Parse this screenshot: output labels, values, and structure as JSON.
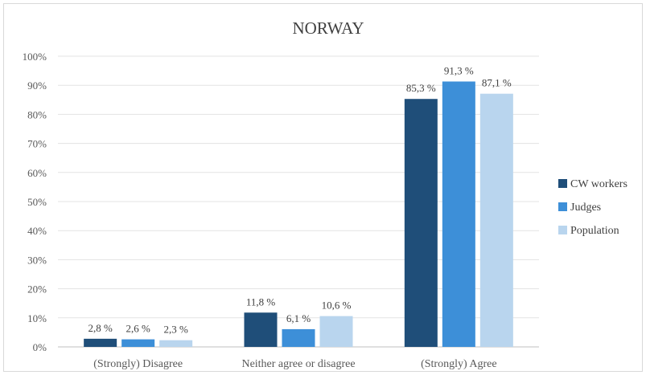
{
  "chart_data": {
    "type": "bar",
    "title": "NORWAY",
    "categories": [
      "(Strongly) Disagree",
      "Neither agree or disagree",
      "(Strongly) Agree"
    ],
    "series": [
      {
        "name": "CW workers",
        "values": [
          2.8,
          11.8,
          85.3
        ],
        "labels": [
          "2,8 %",
          "11,8 %",
          "85,3 %"
        ],
        "color": "#1f4e79"
      },
      {
        "name": "Judges",
        "values": [
          2.6,
          6.1,
          91.3
        ],
        "labels": [
          "2,6 %",
          "6,1 %",
          "91,3 %"
        ],
        "color": "#3d8fd8"
      },
      {
        "name": "Population",
        "values": [
          2.3,
          10.6,
          87.1
        ],
        "labels": [
          "2,3 %",
          "10,6 %",
          "87,1 %"
        ],
        "color": "#b9d5ee"
      }
    ],
    "ylim": [
      0,
      100
    ],
    "yticks": [
      "0%",
      "10%",
      "20%",
      "30%",
      "40%",
      "50%",
      "60%",
      "70%",
      "80%",
      "90%",
      "100%"
    ],
    "grid": true,
    "legend_position": "right"
  }
}
